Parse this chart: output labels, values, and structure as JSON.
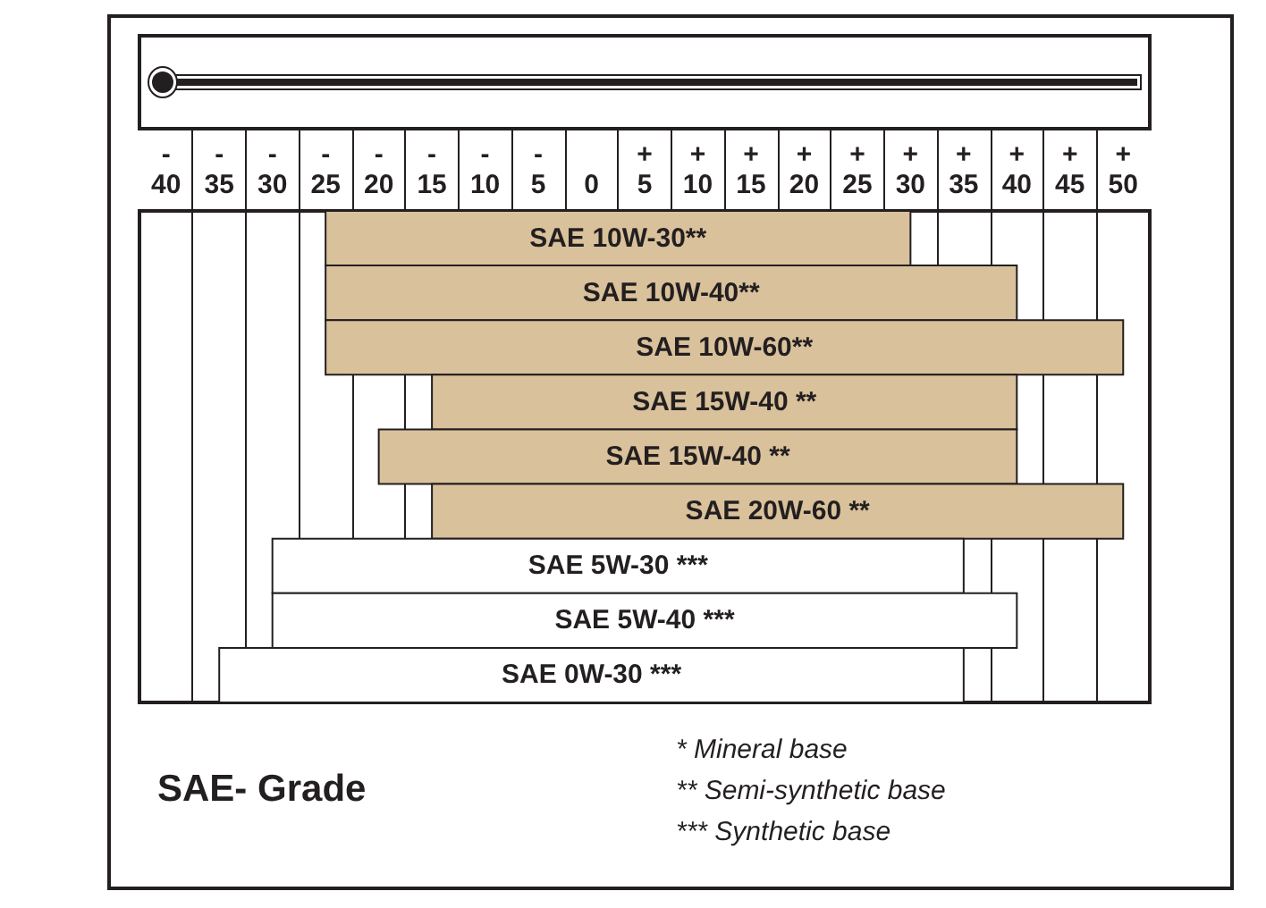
{
  "chart_data": {
    "type": "bar",
    "orientation": "horizontal",
    "title": "SAE- Grade",
    "categories": [
      "SAE 10W-30**",
      "SAE 10W-40**",
      "SAE 10W-60**",
      "SAE 15W-40 **",
      "SAE 15W-40 **",
      "SAE 20W-60 **",
      "SAE 5W-30 ***",
      "SAE 5W-40 ***",
      "SAE 0W-30 ***"
    ],
    "base": [
      -25,
      -25,
      -25,
      -15,
      -20,
      -15,
      -30,
      -30,
      -35
    ],
    "values": [
      55,
      65,
      75,
      55,
      60,
      65,
      65,
      70,
      70
    ],
    "colors": [
      "#d9c19b",
      "#d9c19b",
      "#d9c19b",
      "#d9c19b",
      "#d9c19b",
      "#d9c19b",
      "#ffffff",
      "#ffffff",
      "#ffffff"
    ],
    "xlim": [
      -42.5,
      52.5
    ],
    "xticks": [
      {
        "value": -40,
        "label": "-40"
      },
      {
        "value": -35,
        "label": "-35"
      },
      {
        "value": -30,
        "label": "-30"
      },
      {
        "value": -25,
        "label": "-25"
      },
      {
        "value": -20,
        "label": "-20"
      },
      {
        "value": -15,
        "label": "-15"
      },
      {
        "value": -10,
        "label": "-10"
      },
      {
        "value": -5,
        "label": "-5"
      },
      0,
      {
        "value": 5,
        "label": "+5"
      },
      {
        "value": 10,
        "label": "+10"
      },
      {
        "value": 15,
        "label": "+15"
      },
      {
        "value": 20,
        "label": "+20"
      },
      {
        "value": 25,
        "label": "+25"
      },
      {
        "value": 30,
        "label": "+30"
      },
      {
        "value": 35,
        "label": "+35"
      },
      {
        "value": 40,
        "label": "+40"
      },
      {
        "value": 45,
        "label": "+45"
      },
      {
        "value": 50,
        "label": "+50"
      }
    ],
    "grid": "x",
    "tick_labels": "x",
    "annotations": [
      "* Mineral base",
      "** Semi-synthetic base",
      "*** Synthetic base"
    ]
  }
}
